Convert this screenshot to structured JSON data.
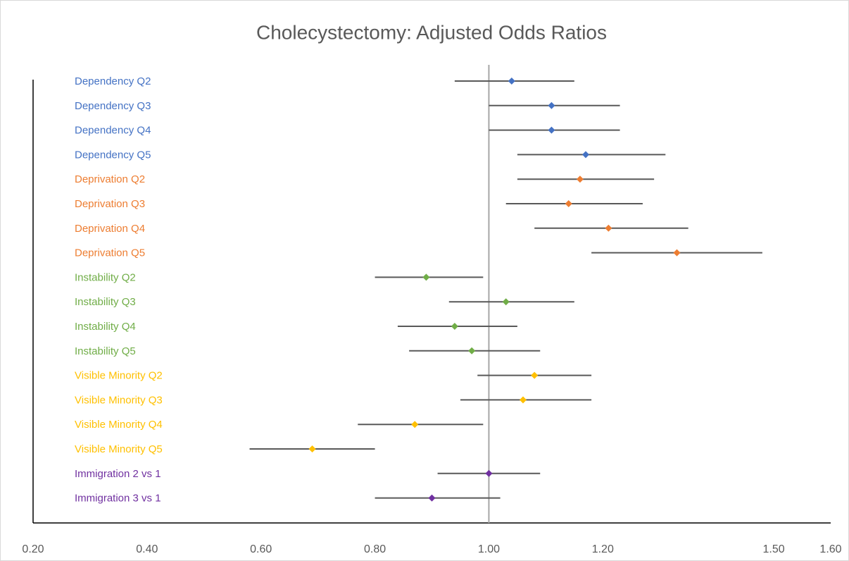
{
  "chart_data": {
    "type": "forest",
    "title": "Cholecystectomy: Adjusted Odds Ratios",
    "xlim": [
      0.2,
      1.6
    ],
    "xticks": [
      {
        "value": 0.2,
        "label": "0.20"
      },
      {
        "value": 0.4,
        "label": "0.40"
      },
      {
        "value": 0.6,
        "label": "0.60"
      },
      {
        "value": 0.8,
        "label": "0.80"
      },
      {
        "value": 1.0,
        "label": "1.00"
      },
      {
        "value": 1.2,
        "label": "1.20"
      },
      {
        "value": 1.5,
        "label": "1.50"
      },
      {
        "value": 1.6,
        "label": "1.60"
      }
    ],
    "reference_line": 1,
    "series": [
      {
        "color": "#4472c4",
        "categories": [
          "Dependency Q2",
          "Dependency Q3",
          "Dependency Q4",
          "Dependency Q5"
        ],
        "values": [
          1.04,
          1.11,
          1.11,
          1.17
        ],
        "lower": [
          0.94,
          1.0,
          1.0,
          1.05
        ],
        "upper": [
          1.15,
          1.23,
          1.23,
          1.31
        ]
      },
      {
        "color": "#ed7d31",
        "categories": [
          "Deprivation Q2",
          "Deprivation Q3",
          "Deprivation Q4",
          "Deprivation Q5"
        ],
        "values": [
          1.16,
          1.14,
          1.21,
          1.33
        ],
        "lower": [
          1.05,
          1.03,
          1.08,
          1.18
        ],
        "upper": [
          1.29,
          1.27,
          1.35,
          1.48
        ]
      },
      {
        "color": "#70ad47",
        "categories": [
          "Instability Q2",
          "Instability Q3",
          "Instability Q4",
          "Instability Q5"
        ],
        "values": [
          0.89,
          1.03,
          0.94,
          0.97
        ],
        "lower": [
          0.8,
          0.93,
          0.84,
          0.86
        ],
        "upper": [
          0.99,
          1.15,
          1.05,
          1.09
        ]
      },
      {
        "color": "#ffc000",
        "categories": [
          "Visible Minority Q2",
          "Visible Minority Q3",
          "Visible Minority Q4",
          "Visible Minority Q5"
        ],
        "values": [
          1.08,
          1.06,
          0.87,
          0.69
        ],
        "lower": [
          0.98,
          0.95,
          0.77,
          0.58
        ],
        "upper": [
          1.18,
          1.18,
          0.99,
          0.8
        ]
      },
      {
        "color": "#7030a0",
        "categories": [
          "Immigration 2 vs 1",
          "Immigration 3 vs 1"
        ],
        "values": [
          1.0,
          0.9
        ],
        "lower": [
          0.91,
          0.8
        ],
        "upper": [
          1.09,
          1.02
        ]
      }
    ]
  }
}
